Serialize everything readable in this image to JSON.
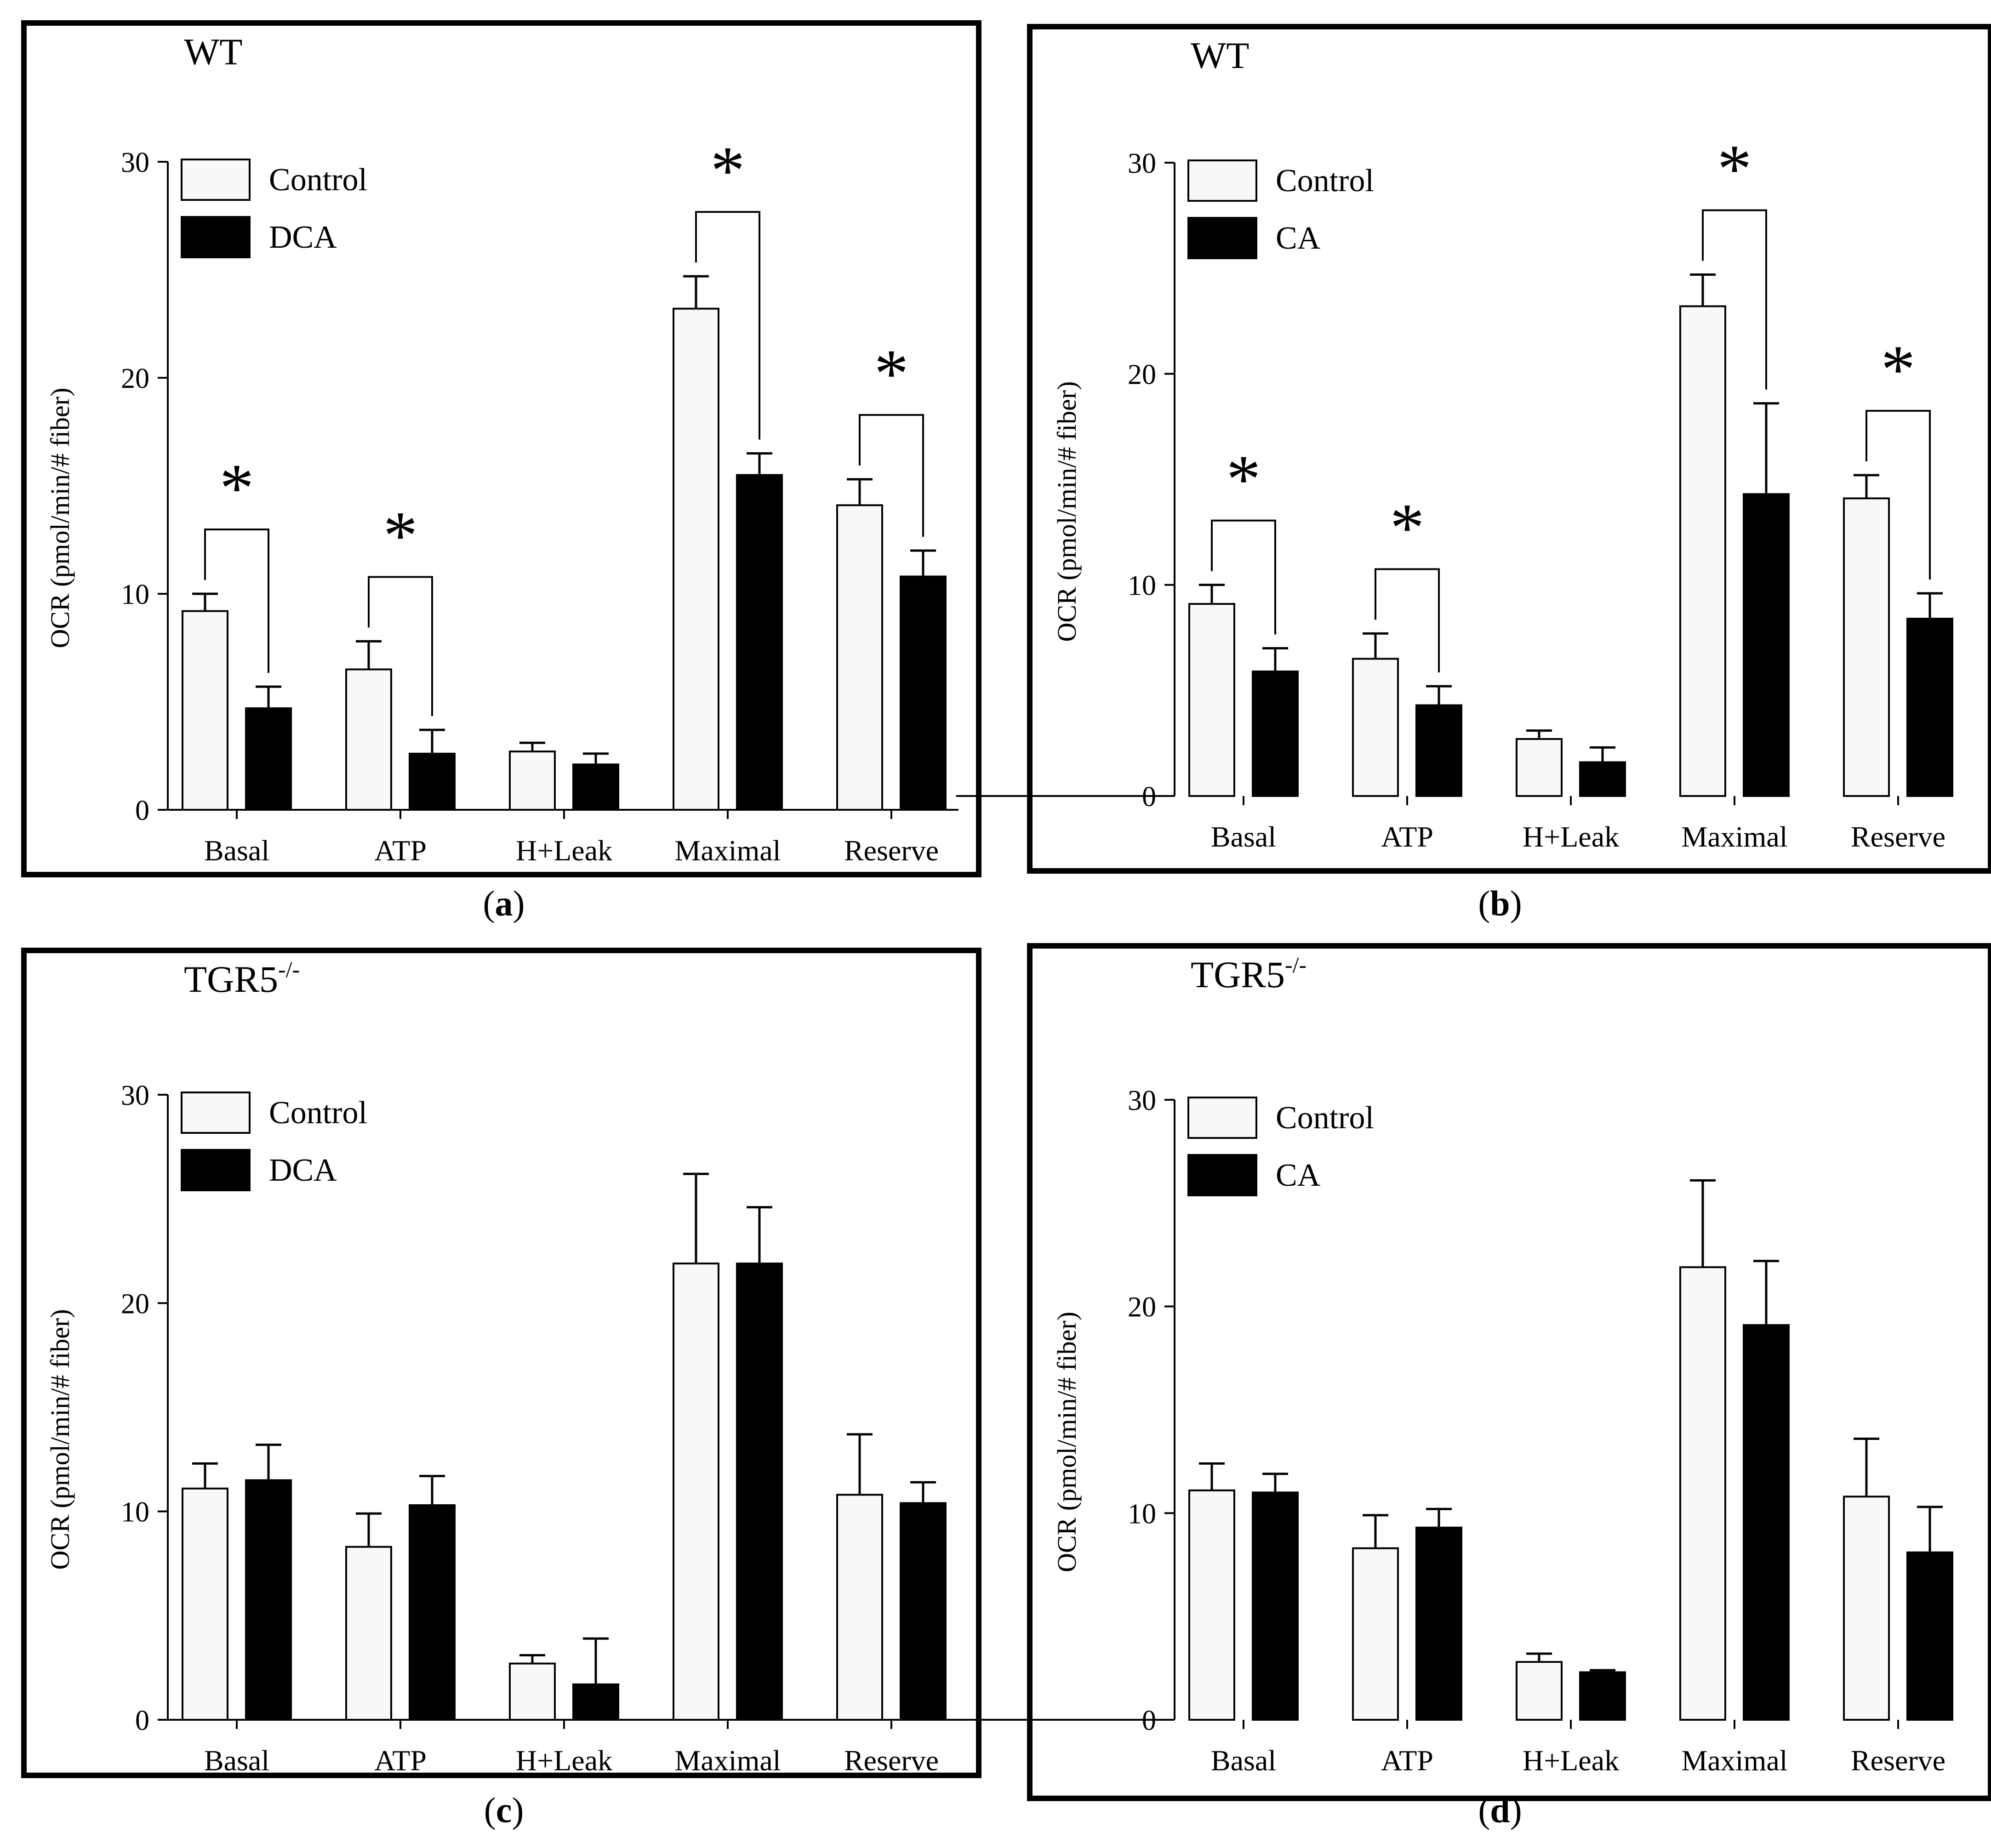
{
  "panels": [
    {
      "panel_label": "a",
      "genotype": "WT",
      "genotype_superscript": "",
      "chart_data": {
        "type": "bar",
        "title": "WT",
        "ylabel": "OCR (pmol/min/# fiber)",
        "ylim": [
          0,
          30
        ],
        "yticks": [
          0,
          10,
          20,
          30
        ],
        "categories": [
          "Basal",
          "ATP",
          "H+Leak",
          "Maximal",
          "Reserve"
        ],
        "series": [
          {
            "name": "Control",
            "values": [
              9.2,
              6.5,
              2.7,
              23.2,
              14.1
            ],
            "errors": [
              0.8,
              1.3,
              0.4,
              1.5,
              1.2
            ],
            "color": "#f8f8f8"
          },
          {
            "name": "DCA",
            "values": [
              4.7,
              2.6,
              2.1,
              15.5,
              10.8
            ],
            "errors": [
              1.0,
              1.1,
              0.5,
              1.0,
              1.2
            ],
            "color": "#000000"
          }
        ],
        "significance": [
          {
            "category": "Basal",
            "label": "*"
          },
          {
            "category": "ATP",
            "label": "*"
          },
          {
            "category": "Maximal",
            "label": "*"
          },
          {
            "category": "Reserve",
            "label": "*"
          }
        ],
        "legend_position": "top-left"
      }
    },
    {
      "panel_label": "b",
      "genotype": "WT",
      "genotype_superscript": "",
      "chart_data": {
        "type": "bar",
        "title": "WT",
        "ylabel": "OCR (pmol/min/# fiber)",
        "ylim": [
          0,
          30
        ],
        "yticks": [
          0,
          10,
          20,
          30
        ],
        "categories": [
          "Basal",
          "ATP",
          "H+Leak",
          "Maximal",
          "Reserve"
        ],
        "series": [
          {
            "name": "Control",
            "values": [
              9.1,
              6.5,
              2.7,
              23.2,
              14.1
            ],
            "errors": [
              0.9,
              1.2,
              0.4,
              1.5,
              1.1
            ],
            "color": "#f8f8f8"
          },
          {
            "name": "CA",
            "values": [
              5.9,
              4.3,
              1.6,
              14.3,
              8.4
            ],
            "errors": [
              1.1,
              0.9,
              0.7,
              4.3,
              1.2
            ],
            "color": "#000000"
          }
        ],
        "significance": [
          {
            "category": "Basal",
            "label": "*"
          },
          {
            "category": "ATP",
            "label": "*"
          },
          {
            "category": "Maximal",
            "label": "*"
          },
          {
            "category": "Reserve",
            "label": "*"
          }
        ],
        "legend_position": "top-left"
      }
    },
    {
      "panel_label": "c",
      "genotype": "TGR5",
      "genotype_superscript": "-/-",
      "chart_data": {
        "type": "bar",
        "title": "TGR5-/-",
        "ylabel": "OCR (pmol/min/# fiber)",
        "ylim": [
          0,
          30
        ],
        "yticks": [
          0,
          10,
          20,
          30
        ],
        "categories": [
          "Basal",
          "ATP",
          "H+Leak",
          "Maximal",
          "Reserve"
        ],
        "series": [
          {
            "name": "Control",
            "values": [
              11.1,
              8.3,
              2.7,
              21.9,
              10.8
            ],
            "errors": [
              1.2,
              1.6,
              0.4,
              4.3,
              2.9
            ],
            "color": "#f8f8f8"
          },
          {
            "name": "DCA",
            "values": [
              11.5,
              10.3,
              1.7,
              21.9,
              10.4
            ],
            "errors": [
              1.7,
              1.4,
              2.2,
              2.7,
              1.0
            ],
            "color": "#000000"
          }
        ],
        "significance": [],
        "legend_position": "top-left"
      }
    },
    {
      "panel_label": "d",
      "genotype": "TGR5",
      "genotype_superscript": "-/-",
      "chart_data": {
        "type": "bar",
        "title": "TGR5-/-",
        "ylabel": "OCR (pmol/min/# fiber)",
        "ylim": [
          0,
          30
        ],
        "yticks": [
          0,
          10,
          20,
          30
        ],
        "categories": [
          "Basal",
          "ATP",
          "H+Leak",
          "Maximal",
          "Reserve"
        ],
        "series": [
          {
            "name": "Control",
            "values": [
              11.1,
              8.3,
              2.8,
              21.9,
              10.8
            ],
            "errors": [
              1.3,
              1.6,
              0.4,
              4.2,
              2.8
            ],
            "color": "#f8f8f8"
          },
          {
            "name": "CA",
            "values": [
              11.0,
              9.3,
              2.3,
              19.1,
              8.1
            ],
            "errors": [
              0.9,
              0.9,
              0.1,
              3.1,
              2.2
            ],
            "color": "#000000"
          }
        ],
        "significance": [],
        "legend_position": "top-left"
      }
    }
  ]
}
